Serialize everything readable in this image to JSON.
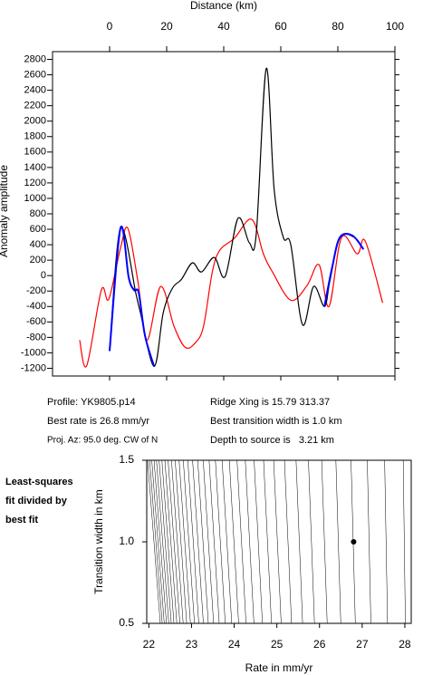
{
  "chart_data": [
    {
      "type": "line",
      "x_label": "Distance (km)",
      "y_label": "Anomaly amplitude",
      "xlim": [
        -20,
        100
      ],
      "ylim": [
        -1300,
        2900
      ],
      "xticks": [
        0,
        20,
        40,
        60,
        80,
        100
      ],
      "yticks": [
        -1200,
        -1000,
        -800,
        -600,
        -400,
        -200,
        0,
        200,
        400,
        600,
        800,
        1000,
        1200,
        1400,
        1600,
        1800,
        2000,
        2200,
        2400,
        2600,
        2800
      ],
      "series": [
        {
          "color": "#ff0000",
          "x": [
            -10.5,
            -8,
            -2.9,
            -0.3,
            3.8,
            6.4,
            9.9,
            13.1,
            17.9,
            22.6,
            26.5,
            30,
            32.9,
            36,
            38.6,
            43.7,
            49.8,
            53.9,
            57.1,
            63.5,
            69.2,
            73.4,
            76.9,
            81.3,
            86.8,
            89.6,
            95.7
          ],
          "values": [
            -835,
            -1165,
            -188,
            -306,
            353,
            612,
            -71,
            -835,
            -141,
            -659,
            -929,
            -871,
            -659,
            47,
            329,
            482,
            729,
            282,
            47,
            -318,
            -129,
            141,
            -400,
            494,
            282,
            447,
            -353
          ]
        },
        {
          "color": "#000000",
          "x": [
            0,
            3.8,
            9.3,
            10.8,
            15.6,
            18.8,
            22,
            25.2,
            29,
            32.2,
            36.7,
            40.5,
            45,
            49,
            51.4,
            54.9,
            57.7,
            60.9,
            63.5,
            67.6,
            71.5,
            75.3,
            77.2,
            80.7,
            85.8,
            89
          ],
          "values": [
            -976,
            612,
            -247,
            -480,
            -1176,
            -480,
            -165,
            -47,
            165,
            47,
            235,
            -12,
            741,
            424,
            541,
            2682,
            1106,
            494,
            400,
            -635,
            -141,
            -400,
            -71,
            494,
            494,
            341
          ]
        },
        {
          "color": "#0000ff",
          "x": [
            0,
            3.8,
            6.7,
            8.6,
            10.2,
            12.4,
            15.6,
            null,
            75.3,
            78,
            80.7,
            85.1,
            89
          ],
          "values": [
            -976,
            612,
            -24,
            -188,
            -224,
            -776,
            -1176,
            null,
            -400,
            106,
            494,
            518,
            341
          ]
        }
      ]
    },
    {
      "type": "contour",
      "x_label": "Rate in mm/yr",
      "y_label": "Transition width in km",
      "xlim": [
        21.95,
        28.15
      ],
      "ylim": [
        0.5,
        1.5
      ],
      "xticks": [
        22,
        23,
        24,
        25,
        26,
        27,
        28
      ],
      "yticks": [
        0.5,
        {
          "value": 1,
          "label": "1.0"
        },
        1.5
      ],
      "best_fit": {
        "x": 26.8,
        "y": 1
      },
      "side_note": [
        "Least-squares",
        "fit divided by",
        "best fit"
      ]
    }
  ],
  "info": [
    "Profile: YK9805.p14",
    "Best rate is 26.8 mm/yr",
    "Proj. Az: 95.0 deg. CW of N",
    "Ridge Xing is 15.79 313.37",
    "Best transition width is 1.0 km",
    "Depth to source is   3.21 km"
  ]
}
